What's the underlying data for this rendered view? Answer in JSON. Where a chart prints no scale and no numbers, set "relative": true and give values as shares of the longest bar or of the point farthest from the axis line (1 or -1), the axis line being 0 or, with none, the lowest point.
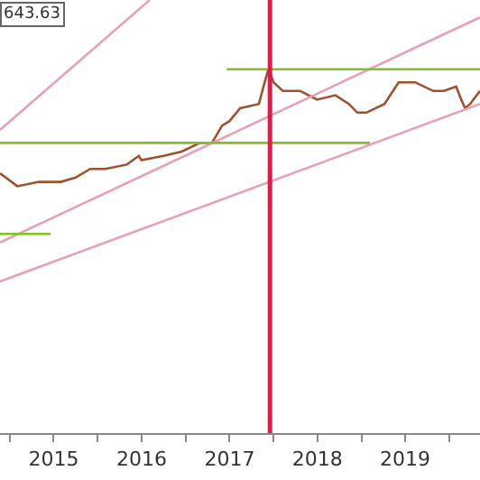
{
  "chart_data": {
    "type": "line",
    "relative": true,
    "marker": "none",
    "line_style": "solid",
    "xlim": [
      "2014-11-21",
      "2020-05-08"
    ],
    "xticks": [
      {
        "value": "2015-01-01",
        "label": null
      },
      {
        "value": "2015-07-02",
        "label": "2015"
      },
      {
        "value": "2016-01-01",
        "label": null
      },
      {
        "value": "2016-07-02",
        "label": "2016"
      },
      {
        "value": "2017-01-01",
        "label": null
      },
      {
        "value": "2017-07-02",
        "label": "2017"
      },
      {
        "value": "2018-01-01",
        "label": null
      },
      {
        "value": "2018-07-02",
        "label": "2018"
      },
      {
        "value": "2019-01-01",
        "label": null
      },
      {
        "value": "2019-07-02",
        "label": "2019"
      },
      {
        "value": "2020-01-01",
        "label": null
      }
    ],
    "tick_labels": "x",
    "annotations": [
      "643.63"
    ],
    "ref_lines": [
      {
        "axis": "x",
        "value": "2017-12-17",
        "label": null,
        "color": "#e8174a"
      }
    ],
    "series": [
      {
        "color": "#a0522d",
        "x": [
          "2014-11-21",
          "2015-02-01",
          "2015-05-01",
          "2015-08-01",
          "2015-10-01",
          "2015-12-01",
          "2016-02-01",
          "2016-05-01",
          "2016-06-20",
          "2016-07-01",
          "2016-10-01",
          "2016-12-15",
          "2017-03-01",
          "2017-04-20",
          "2017-06-01",
          "2017-07-01",
          "2017-08-15",
          "2017-11-01",
          "2017-11-25",
          "2017-12-10",
          "2018-01-01",
          "2018-02-08",
          "2018-04-22",
          "2018-07-01",
          "2018-09-15",
          "2018-11-10",
          "2018-12-15",
          "2019-01-22",
          "2019-04-07",
          "2019-06-05",
          "2019-08-12",
          "2019-10-27",
          "2019-12-10",
          "2020-01-30",
          "2020-02-20",
          "2020-03-07",
          "2020-03-28",
          "2020-05-08"
        ],
        "values": [
          0.6,
          0.57,
          0.58,
          0.58,
          0.59,
          0.61,
          0.61,
          0.62,
          0.64,
          0.63,
          0.64,
          0.65,
          0.67,
          0.67,
          0.71,
          0.72,
          0.75,
          0.76,
          0.81,
          0.84,
          0.81,
          0.79,
          0.79,
          0.77,
          0.78,
          0.76,
          0.74,
          0.74,
          0.76,
          0.81,
          0.81,
          0.79,
          0.79,
          0.8,
          0.77,
          0.75,
          0.76,
          0.79
        ]
      },
      {
        "color": "#e8a0b4",
        "x": [
          "2014-11-21",
          "2016-08-04"
        ],
        "values": [
          0.7,
          1
        ]
      },
      {
        "color": "#e8a0b4",
        "x": [
          "2014-11-21",
          "2020-05-08"
        ],
        "values": [
          0.44,
          0.96
        ]
      },
      {
        "color": "#e8a0b4",
        "x": [
          "2014-11-21",
          "2020-05-08"
        ],
        "values": [
          0.35,
          0.76
        ]
      },
      {
        "color": "#7fc31c",
        "x": [
          "2014-11-21",
          "2019-02-05"
        ],
        "values": [
          0.67,
          0.67
        ]
      },
      {
        "color": "#7fc31c",
        "x": [
          "2017-06-20",
          "2020-05-08"
        ],
        "values": [
          0.84,
          0.84
        ]
      },
      {
        "color": "#7fc31c",
        "x": [
          "2014-11-21",
          "2015-06-20"
        ],
        "values": [
          0.46,
          0.46
        ]
      }
    ]
  }
}
